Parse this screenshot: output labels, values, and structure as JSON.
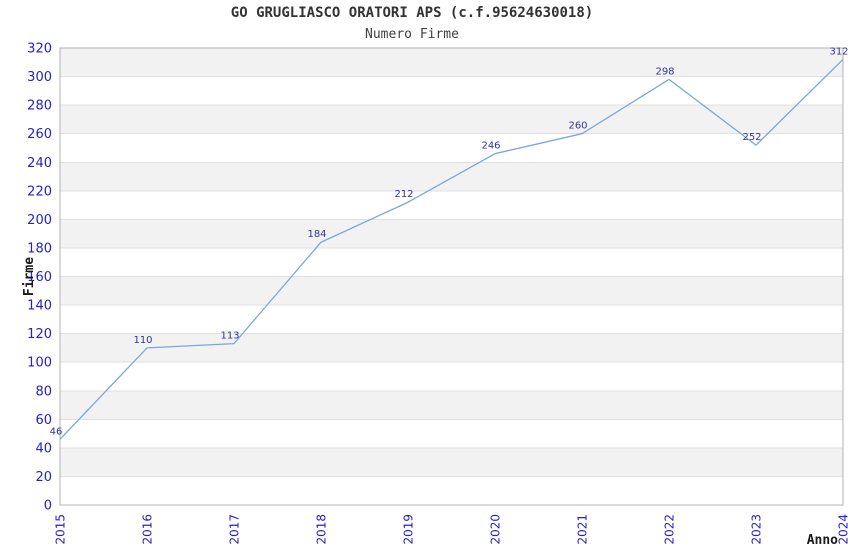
{
  "chart_data": {
    "type": "line",
    "title": "GO GRUGLIASCO ORATORI APS (c.f.95624630018)",
    "subtitle": "Numero Firme",
    "xlabel": "Anno",
    "ylabel": "Firme",
    "x": [
      2015,
      2016,
      2017,
      2018,
      2019,
      2020,
      2021,
      2022,
      2023,
      2024
    ],
    "series": [
      {
        "name": "Numero Firme",
        "values": [
          46,
          110,
          113,
          184,
          212,
          246,
          260,
          298,
          252,
          312
        ]
      }
    ],
    "ylim": [
      0,
      320
    ],
    "ytick_step": 20,
    "grid": true,
    "legend_position": "none",
    "point_labels_visible": true
  },
  "style": {
    "line_color": "#79a8db",
    "tick_label_color": "#2222cc",
    "point_label_color": "#333399",
    "band_color": "#f2f2f2",
    "grid_color": "#e0e0e0",
    "border_color": "#b3b3b3",
    "axis_title_color": "#1a1a1a",
    "title_color": "#333333"
  }
}
